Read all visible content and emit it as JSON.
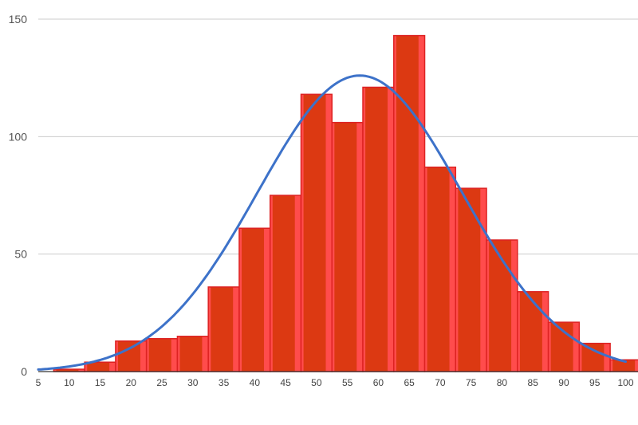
{
  "chart_data": {
    "type": "bar",
    "title": "",
    "xlabel": "",
    "ylabel": "",
    "bin_width": 5,
    "bins": [
      {
        "start": 7.5,
        "value": 1
      },
      {
        "start": 12.5,
        "value": 4
      },
      {
        "start": 17.5,
        "value": 13
      },
      {
        "start": 22.5,
        "value": 14
      },
      {
        "start": 27.5,
        "value": 15
      },
      {
        "start": 32.5,
        "value": 36
      },
      {
        "start": 37.5,
        "value": 61
      },
      {
        "start": 42.5,
        "value": 75
      },
      {
        "start": 47.5,
        "value": 118
      },
      {
        "start": 52.5,
        "value": 106
      },
      {
        "start": 57.5,
        "value": 121
      },
      {
        "start": 62.5,
        "value": 143
      },
      {
        "start": 67.5,
        "value": 87
      },
      {
        "start": 72.5,
        "value": 78
      },
      {
        "start": 77.5,
        "value": 56
      },
      {
        "start": 82.5,
        "value": 34
      },
      {
        "start": 87.5,
        "value": 21
      },
      {
        "start": 92.5,
        "value": 12
      },
      {
        "start": 97.5,
        "value": 5
      }
    ],
    "fit_curve": {
      "type": "normal",
      "mean": 57,
      "sd": 16.5,
      "peak": 126,
      "x_range": [
        5,
        100
      ]
    },
    "xlim": [
      5,
      102
    ],
    "ylim": [
      0,
      150
    ],
    "xticks": [
      "5",
      "10",
      "15",
      "20",
      "25",
      "30",
      "35",
      "40",
      "45",
      "50",
      "55",
      "60",
      "65",
      "70",
      "75",
      "80",
      "85",
      "90",
      "95",
      "100"
    ],
    "yticks": [
      "0",
      "50",
      "100",
      "150"
    ],
    "grid": true,
    "legend": false,
    "colors": {
      "bar_fill": "#ff4c4c",
      "bar_stripe": "#dc3912",
      "bar_edge": "#dd2222",
      "curve": "#3d72c9",
      "grid": "#cccccc",
      "axis": "#333333"
    }
  }
}
